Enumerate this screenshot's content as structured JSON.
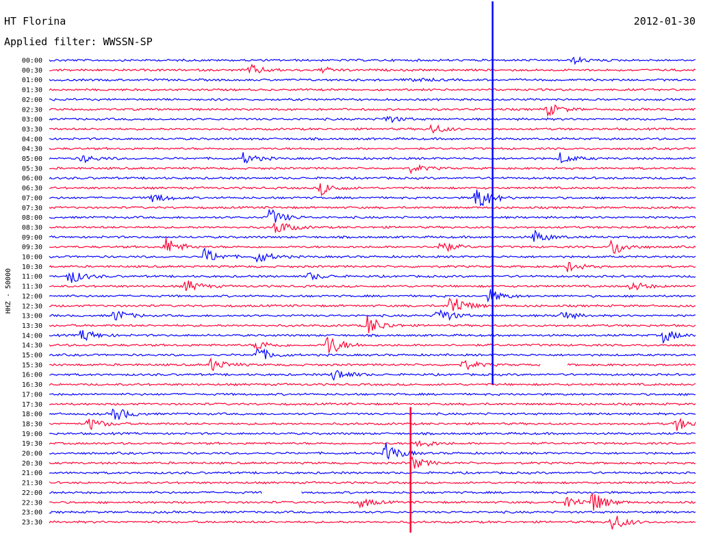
{
  "header": {
    "station": "HT Florina",
    "filter": "Applied filter: WWSSN-SP",
    "date": "2012-01-30"
  },
  "chart_data": {
    "type": "line",
    "title": "HT Florina",
    "subtitle": "Applied filter: WWSSN-SP",
    "ylabel": "HHZ - 50000",
    "xlabel": "",
    "rows": [
      "00:00",
      "00:30",
      "01:00",
      "01:30",
      "02:00",
      "02:30",
      "03:00",
      "03:30",
      "04:00",
      "04:30",
      "05:00",
      "05:30",
      "06:00",
      "06:30",
      "07:00",
      "07:30",
      "08:00",
      "08:30",
      "09:00",
      "09:30",
      "10:00",
      "10:30",
      "11:00",
      "11:30",
      "12:00",
      "12:30",
      "13:00",
      "13:30",
      "14:00",
      "14:30",
      "15:00",
      "15:30",
      "16:00",
      "16:30",
      "17:00",
      "17:30",
      "18:00",
      "18:30",
      "19:00",
      "19:30",
      "20:00",
      "20:30",
      "21:00",
      "21:30",
      "22:00",
      "22:30",
      "23:00",
      "23:30"
    ],
    "colors": [
      "#0000ff",
      "#ff0033"
    ],
    "row_minutes": 30,
    "events": [
      {
        "row": 0,
        "t": 0.81,
        "amp": 5
      },
      {
        "row": 1,
        "t": 0.31,
        "amp": 8
      },
      {
        "row": 1,
        "t": 0.42,
        "amp": 4
      },
      {
        "row": 2,
        "t": 0.56,
        "amp": 4
      },
      {
        "row": 5,
        "t": 0.77,
        "amp": 10
      },
      {
        "row": 6,
        "t": 0.52,
        "amp": 6
      },
      {
        "row": 7,
        "t": 0.59,
        "amp": 8
      },
      {
        "row": 10,
        "t": 0.05,
        "amp": 6
      },
      {
        "row": 10,
        "t": 0.3,
        "amp": 8
      },
      {
        "row": 10,
        "t": 0.79,
        "amp": 8
      },
      {
        "row": 11,
        "t": 0.56,
        "amp": 6
      },
      {
        "row": 13,
        "t": 0.42,
        "amp": 10
      },
      {
        "row": 14,
        "t": 0.66,
        "amp": 22
      },
      {
        "row": 14,
        "t": 0.16,
        "amp": 8
      },
      {
        "row": 16,
        "t": 0.34,
        "amp": 14
      },
      {
        "row": 17,
        "t": 0.35,
        "amp": 12
      },
      {
        "row": 18,
        "t": 0.75,
        "amp": 10
      },
      {
        "row": 19,
        "t": 0.18,
        "amp": 14
      },
      {
        "row": 19,
        "t": 0.6,
        "amp": 12
      },
      {
        "row": 19,
        "t": 0.87,
        "amp": 14
      },
      {
        "row": 20,
        "t": 0.24,
        "amp": 12
      },
      {
        "row": 20,
        "t": 0.32,
        "amp": 10
      },
      {
        "row": 21,
        "t": 0.8,
        "amp": 8
      },
      {
        "row": 22,
        "t": 0.03,
        "amp": 12
      },
      {
        "row": 22,
        "t": 0.4,
        "amp": 6
      },
      {
        "row": 23,
        "t": 0.21,
        "amp": 10
      },
      {
        "row": 23,
        "t": 0.9,
        "amp": 8
      },
      {
        "row": 24,
        "t": 0.68,
        "amp": 10
      },
      {
        "row": 25,
        "t": 0.62,
        "amp": 20
      },
      {
        "row": 26,
        "t": 0.1,
        "amp": 10
      },
      {
        "row": 26,
        "t": 0.6,
        "amp": 14
      },
      {
        "row": 26,
        "t": 0.79,
        "amp": 8
      },
      {
        "row": 27,
        "t": 0.49,
        "amp": 18
      },
      {
        "row": 28,
        "t": 0.05,
        "amp": 10
      },
      {
        "row": 28,
        "t": 0.95,
        "amp": 10
      },
      {
        "row": 29,
        "t": 0.43,
        "amp": 18
      },
      {
        "row": 29,
        "t": 0.32,
        "amp": 8
      },
      {
        "row": 30,
        "t": 0.32,
        "amp": 12
      },
      {
        "row": 31,
        "t": 0.25,
        "amp": 10
      },
      {
        "row": 31,
        "t": 0.64,
        "amp": 8
      },
      {
        "row": 32,
        "t": 0.44,
        "amp": 10
      },
      {
        "row": 36,
        "t": 0.1,
        "amp": 12
      },
      {
        "row": 37,
        "t": 0.06,
        "amp": 10
      },
      {
        "row": 37,
        "t": 0.97,
        "amp": 10
      },
      {
        "row": 39,
        "t": 0.57,
        "amp": 8
      },
      {
        "row": 40,
        "t": 0.52,
        "amp": 16
      },
      {
        "row": 41,
        "t": 0.56,
        "amp": 10
      },
      {
        "row": 45,
        "t": 0.84,
        "amp": 16
      },
      {
        "row": 45,
        "t": 0.8,
        "amp": 10
      },
      {
        "row": 45,
        "t": 0.48,
        "amp": 8
      },
      {
        "row": 47,
        "t": 0.87,
        "amp": 14
      }
    ],
    "spikes": [
      {
        "t": 0.686,
        "from_row": 0,
        "to_row": 33,
        "color": "#0000ff"
      },
      {
        "t": 0.559,
        "from_row": 36,
        "to_row": 47,
        "color": "#ff0033"
      }
    ],
    "gaps": [
      {
        "row": 31,
        "t0": 0.76,
        "t1": 0.8
      },
      {
        "row": 44,
        "t0": 0.33,
        "t1": 0.39
      }
    ]
  }
}
